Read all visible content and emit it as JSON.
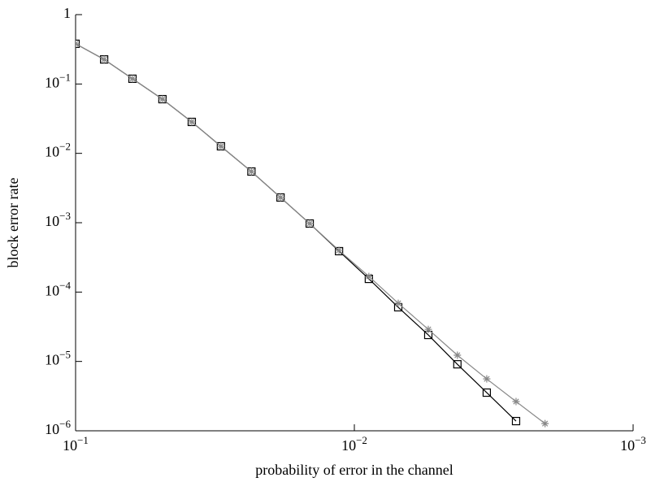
{
  "chart_data": {
    "type": "line",
    "xlabel": "probability of error in the channel",
    "ylabel": "block error rate",
    "xscale": "log",
    "yscale": "log",
    "xlim": [
      0.1,
      0.001
    ],
    "xticks": [
      {
        "value": 0.1,
        "label": "10−1"
      },
      {
        "value": 0.01,
        "label": "10−2"
      },
      {
        "value": 0.001,
        "label": "10−3"
      }
    ],
    "ylim": [
      1e-06,
      1
    ],
    "yticks": [
      {
        "value": 1e-06,
        "label": "10−6"
      },
      {
        "value": 1e-05,
        "label": "10−5"
      },
      {
        "value": 0.0001,
        "label": "10−4"
      },
      {
        "value": 0.001,
        "label": "10−3"
      },
      {
        "value": 0.01,
        "label": "10−2"
      },
      {
        "value": 0.1,
        "label": "10−1"
      },
      1
    ],
    "x": [
      0.1,
      0.079,
      0.0625,
      0.0488,
      0.0383,
      0.0301,
      0.0234,
      0.0184,
      0.01446,
      0.01135,
      0.00887,
      0.00696,
      0.00543,
      0.00427,
      0.00335,
      0.00263,
      0.00207
    ],
    "series": [
      {
        "color": "#000000",
        "marker": "square",
        "values": [
          0.38,
          0.226,
          0.119,
          0.0604,
          0.0284,
          0.01264,
          0.00547,
          0.00231,
          0.000973,
          0.000389,
          0.000155,
          6.04e-05,
          2.41e-05,
          9.1e-06,
          3.55e-06,
          1.38e-06,
          null
        ]
      },
      {
        "color": "#888888",
        "marker": "star",
        "values": [
          0.38,
          0.226,
          0.119,
          0.0604,
          0.0284,
          0.01264,
          0.00547,
          0.00231,
          0.000973,
          0.000399,
          0.000168,
          6.9e-05,
          2.9e-05,
          1.23e-05,
          5.6e-06,
          2.64e-06,
          1.27e-06
        ]
      }
    ]
  }
}
